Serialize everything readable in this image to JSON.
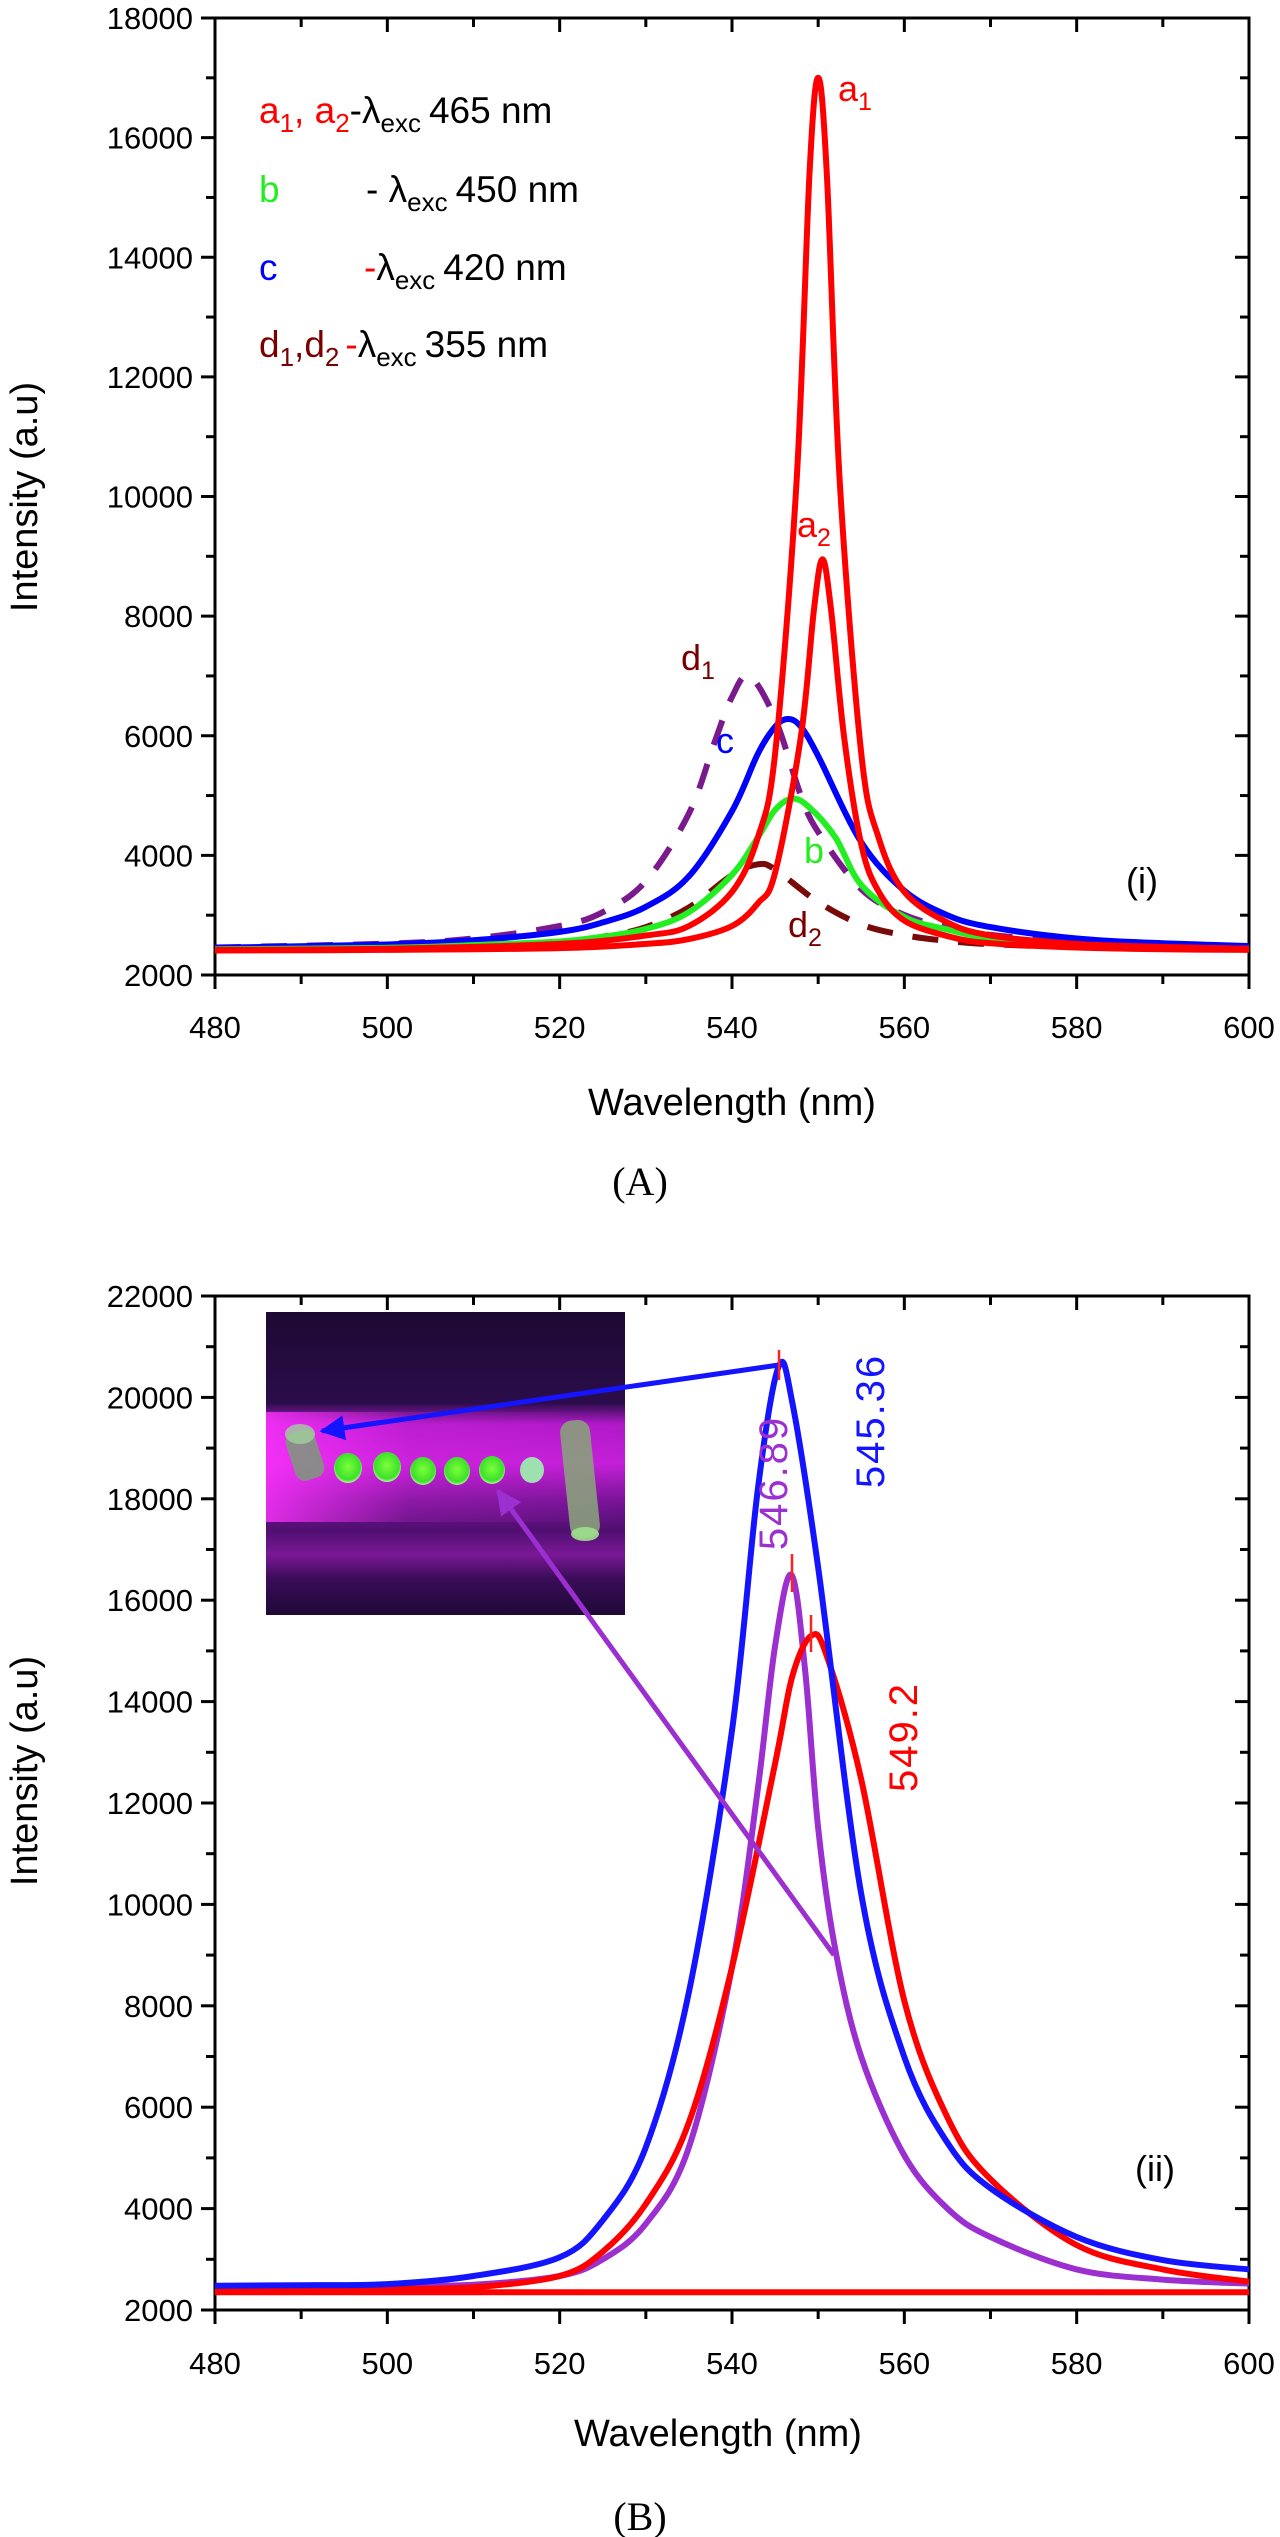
{
  "figure": {
    "panels": [
      "A",
      "B"
    ]
  },
  "chart_data": [
    {
      "id": "A",
      "type": "line",
      "caption": "(A)",
      "panel_tag": "(i)",
      "xlabel": "Wavelength (nm)",
      "ylabel": "Intensity (a.u)",
      "xlim": [
        480,
        600
      ],
      "ylim": [
        2000,
        18000
      ],
      "xticks": [
        480,
        500,
        520,
        540,
        560,
        580,
        600
      ],
      "xtick_labels": [
        "480",
        "500",
        "520",
        "540",
        "560",
        "580",
        "600"
      ],
      "x_minor_step": 10,
      "yticks": [
        2000,
        4000,
        6000,
        8000,
        10000,
        12000,
        14000,
        16000,
        18000
      ],
      "ytick_labels": [
        "2000",
        "4000",
        "6000",
        "8000",
        "10000",
        "12000",
        "14000",
        "16000",
        "18000"
      ],
      "y_minor_step": 1000,
      "grid": false,
      "legend": {
        "placement": "top-left",
        "entries": [
          {
            "parts": [
              {
                "t": "a",
                "sub": "1",
                "color": "#ff0000"
              },
              {
                "t": ", ",
                "color": "#ff0000"
              },
              {
                "t": "a",
                "sub": "2",
                "color": "#ff0000"
              }
            ],
            "dash": "-",
            "dash_color": "#000000",
            "lambda": "λ",
            "lambda_sub": "exc",
            "value": "465 nm"
          },
          {
            "parts": [
              {
                "t": "b",
                "color": "#22ee22"
              }
            ],
            "dash": "- ",
            "dash_color": "#000000",
            "lambda": "λ",
            "lambda_sub": "exc",
            "value": "450 nm"
          },
          {
            "parts": [
              {
                "t": "c",
                "color": "#0000ff"
              }
            ],
            "dash": "-",
            "dash_color": "#ff0000",
            "lambda": "λ",
            "lambda_sub": "exc",
            "value": "420 nm"
          },
          {
            "parts": [
              {
                "t": "d",
                "sub": "1",
                "color": "#7a0000"
              },
              {
                "t": ",",
                "color": "#7a0000"
              },
              {
                "t": "d",
                "sub": "2",
                "color": "#7a0000"
              }
            ],
            "dash": "-",
            "dash_color": "#ff0000",
            "lambda": "λ",
            "lambda_sub": "exc",
            "value": "355 nm"
          }
        ]
      },
      "series": [
        {
          "name": "a1",
          "label": "a",
          "label_sub": "1",
          "excitation_nm": 465,
          "color": "#ff0000",
          "style": "solid",
          "peak_nm": 550,
          "peak_intensity": 17000,
          "x": [
            480,
            500,
            520,
            530,
            535,
            540,
            543,
            545,
            547.5,
            549,
            550,
            551,
            552.5,
            555,
            557,
            560,
            565,
            570,
            580,
            590,
            600
          ],
          "y": [
            2420,
            2440,
            2520,
            2660,
            2820,
            3390,
            4300,
            5700,
            10260,
            15400,
            17000,
            15400,
            10260,
            5700,
            4300,
            3390,
            2880,
            2660,
            2520,
            2470,
            2440
          ]
        },
        {
          "name": "a2",
          "label": "a",
          "label_sub": "2",
          "excitation_nm": 465,
          "color": "#ff0000",
          "style": "solid",
          "peak_nm": 550.5,
          "peak_intensity": 8950,
          "x": [
            480,
            500,
            520,
            530,
            535,
            540,
            543,
            545,
            548,
            549.5,
            550.5,
            551.5,
            553,
            555,
            557,
            560,
            565,
            570,
            580,
            590,
            600
          ],
          "y": [
            2410,
            2420,
            2450,
            2520,
            2600,
            2820,
            3200,
            3710,
            5990,
            8100,
            8950,
            8100,
            5990,
            4180,
            3400,
            2910,
            2650,
            2530,
            2460,
            2430,
            2420
          ]
        },
        {
          "name": "b",
          "label": "b",
          "excitation_nm": 450,
          "color": "#22ee22",
          "style": "solid",
          "peak_nm": 547,
          "peak_intensity": 4950,
          "x": [
            480,
            500,
            510,
            520,
            525,
            530,
            535,
            540,
            543,
            545,
            547,
            549,
            552,
            555,
            560,
            565,
            570,
            580,
            590,
            600
          ],
          "y": [
            2430,
            2455,
            2500,
            2560,
            2640,
            2770,
            3050,
            3675,
            4300,
            4760,
            4950,
            4800,
            4300,
            3505,
            2970,
            2760,
            2620,
            2510,
            2460,
            2440
          ]
        },
        {
          "name": "c",
          "label": "c",
          "excitation_nm": 420,
          "color": "#0000ff",
          "style": "solid",
          "peak_nm": 546.5,
          "peak_intensity": 6280,
          "x": [
            480,
            500,
            510,
            520,
            525,
            530,
            535,
            540,
            543,
            545,
            546.5,
            548,
            550,
            555,
            560,
            565,
            570,
            580,
            590,
            600
          ],
          "y": [
            2455,
            2510,
            2580,
            2720,
            2880,
            3140,
            3650,
            4740,
            5700,
            6150,
            6280,
            6150,
            5660,
            4220,
            3410,
            3000,
            2800,
            2610,
            2530,
            2485
          ]
        },
        {
          "name": "d1",
          "label": "d",
          "label_sub": "1",
          "excitation_nm": 355,
          "color": "#7b1a8c",
          "style": "dashed",
          "peak_nm": 542,
          "peak_intensity": 7000,
          "x": [
            480,
            500,
            510,
            520,
            525,
            530,
            535,
            538,
            540,
            542,
            545,
            548,
            550,
            555,
            560,
            565,
            570,
            580,
            590,
            600
          ],
          "y": [
            2460,
            2525,
            2610,
            2820,
            3050,
            3570,
            4700,
            5900,
            6650,
            7000,
            6285,
            5000,
            4390,
            3434,
            3005,
            2800,
            2670,
            2550,
            2500,
            2466
          ]
        },
        {
          "name": "d2",
          "label": "d",
          "label_sub": "2",
          "excitation_nm": 355,
          "color": "#7a0a0a",
          "style": "dashed",
          "peak_nm": 543,
          "peak_intensity": 3850,
          "x": [
            480,
            500,
            510,
            520,
            525,
            530,
            535,
            540,
            543,
            545,
            550,
            555,
            560,
            565,
            570,
            580,
            590,
            600
          ],
          "y": [
            2420,
            2450,
            2490,
            2555,
            2640,
            2800,
            3130,
            3670,
            3850,
            3765,
            3220,
            2845,
            2665,
            2570,
            2515,
            2465,
            2440,
            2430
          ]
        }
      ],
      "annotations": [
        {
          "series": "a1",
          "text": "a",
          "sub": "1",
          "color": "#ff0000"
        },
        {
          "series": "a2",
          "text": "a",
          "sub": "2",
          "color": "#ff0000"
        },
        {
          "series": "d1",
          "text": "d",
          "sub": "1",
          "color": "#7a0000"
        },
        {
          "series": "c",
          "text": "c",
          "color": "#0000ff"
        },
        {
          "series": "b",
          "text": "b",
          "color": "#22ee22"
        },
        {
          "series": "d2",
          "text": "d",
          "sub": "2",
          "color": "#7a0000"
        }
      ]
    },
    {
      "id": "B",
      "type": "line",
      "caption": "(B)",
      "panel_tag": "(ii)",
      "xlabel": "Wavelength (nm)",
      "ylabel": "Intensity (a.u)",
      "xlim": [
        480,
        600
      ],
      "ylim": [
        2000,
        22000
      ],
      "xticks": [
        480,
        500,
        520,
        540,
        560,
        580,
        600
      ],
      "xtick_labels": [
        "480",
        "500",
        "520",
        "540",
        "560",
        "580",
        "600"
      ],
      "x_minor_step": 10,
      "yticks": [
        2000,
        4000,
        6000,
        8000,
        10000,
        12000,
        14000,
        16000,
        18000,
        20000,
        22000
      ],
      "ytick_labels": [
        "2000",
        "4000",
        "6000",
        "8000",
        "10000",
        "12000",
        "14000",
        "16000",
        "18000",
        "20000",
        "22000"
      ],
      "y_minor_step": 1000,
      "grid": false,
      "legend": null,
      "series": [
        {
          "name": "blue",
          "color": "#1414ff",
          "style": "solid",
          "peak_nm": 545.36,
          "peak_intensity": 20600,
          "peak_label": "545.36",
          "x": [
            480,
            490,
            500,
            510,
            520,
            525,
            530,
            535,
            540,
            543,
            545.4,
            547,
            550,
            555,
            560,
            565,
            570,
            580,
            590,
            600
          ],
          "y": [
            2480,
            2490,
            2510,
            2670,
            3040,
            3770,
            5210,
            8270,
            13430,
            18200,
            20600,
            19900,
            16640,
            10200,
            6990,
            5300,
            4400,
            3440,
            2985,
            2800
          ]
        },
        {
          "name": "purple",
          "color": "#9b2fd0",
          "style": "solid",
          "peak_nm": 546.89,
          "peak_intensity": 16500,
          "peak_label": "546.89",
          "x": [
            480,
            500,
            510,
            520,
            525,
            530,
            535,
            540,
            543,
            545,
            546.9,
            548.5,
            550,
            552,
            555,
            560,
            565,
            570,
            580,
            590,
            600
          ],
          "y": [
            2470,
            2480,
            2500,
            2670,
            3000,
            3700,
            5210,
            8760,
            12290,
            15100,
            16500,
            14600,
            11500,
            9100,
            6990,
            5050,
            4000,
            3440,
            2800,
            2600,
            2520
          ]
        },
        {
          "name": "red",
          "color": "#ff0000",
          "style": "solid",
          "peak_nm": 549.2,
          "peak_intensity": 15300,
          "peak_label": "549.2",
          "x": [
            480,
            500,
            510,
            520,
            525,
            530,
            535,
            540,
            545,
            547,
            549.2,
            551,
            555,
            560,
            565,
            570,
            580,
            590,
            600
          ],
          "y": [
            2400,
            2420,
            2450,
            2670,
            3150,
            4090,
            5700,
            8760,
            12780,
            14500,
            15300,
            14900,
            12460,
            8100,
            5800,
            4580,
            3280,
            2800,
            2560
          ]
        },
        {
          "name": "red-baseline",
          "color": "#ff0000",
          "style": "solid",
          "x": [
            480,
            600
          ],
          "y": [
            2350,
            2350
          ]
        }
      ],
      "peak_labels": [
        {
          "text": "545.36",
          "color": "#1414ff",
          "series": "blue"
        },
        {
          "text": "546.89",
          "color": "#9b2fd0",
          "series": "purple"
        },
        {
          "text": "549.2",
          "color": "#ff0000",
          "series": "red"
        }
      ],
      "inset": {
        "description": "photo of fluorescent green samples under UV light",
        "sample_count": 6,
        "arrows": [
          {
            "from_series": "blue",
            "color": "#1414ff"
          },
          {
            "from_series": "purple",
            "color": "#9b2fd0"
          }
        ]
      }
    }
  ]
}
